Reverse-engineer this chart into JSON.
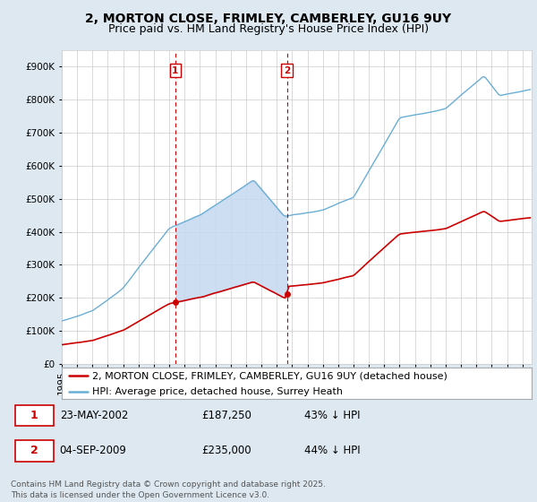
{
  "title": "2, MORTON CLOSE, FRIMLEY, CAMBERLEY, GU16 9UY",
  "subtitle": "Price paid vs. HM Land Registry's House Price Index (HPI)",
  "ylim": [
    0,
    950000
  ],
  "yticks": [
    0,
    100000,
    200000,
    300000,
    400000,
    500000,
    600000,
    700000,
    800000,
    900000
  ],
  "ytick_labels": [
    "£0",
    "£100K",
    "£200K",
    "£300K",
    "£400K",
    "£500K",
    "£600K",
    "£700K",
    "£800K",
    "£900K"
  ],
  "hpi_color": "#6aaed6",
  "price_color": "#cc0000",
  "sale1_date": "23-MAY-2002",
  "sale1_price": 187250,
  "sale1_label": "43% ↓ HPI",
  "sale1_year": 2002.39,
  "sale2_date": "04-SEP-2009",
  "sale2_price": 235000,
  "sale2_label": "44% ↓ HPI",
  "sale2_year": 2009.67,
  "legend_line1": "2, MORTON CLOSE, FRIMLEY, CAMBERLEY, GU16 9UY (detached house)",
  "legend_line2": "HPI: Average price, detached house, Surrey Heath",
  "footnote": "Contains HM Land Registry data © Crown copyright and database right 2025.\nThis data is licensed under the Open Government Licence v3.0.",
  "bg_color": "#dde8f0",
  "plot_bg": "#ffffff",
  "grid_color": "#cccccc",
  "shade_color": "#c6d9f0",
  "title_fontsize": 10,
  "subtitle_fontsize": 9,
  "tick_fontsize": 7.5,
  "legend_fontsize": 8,
  "footnote_fontsize": 6.5
}
